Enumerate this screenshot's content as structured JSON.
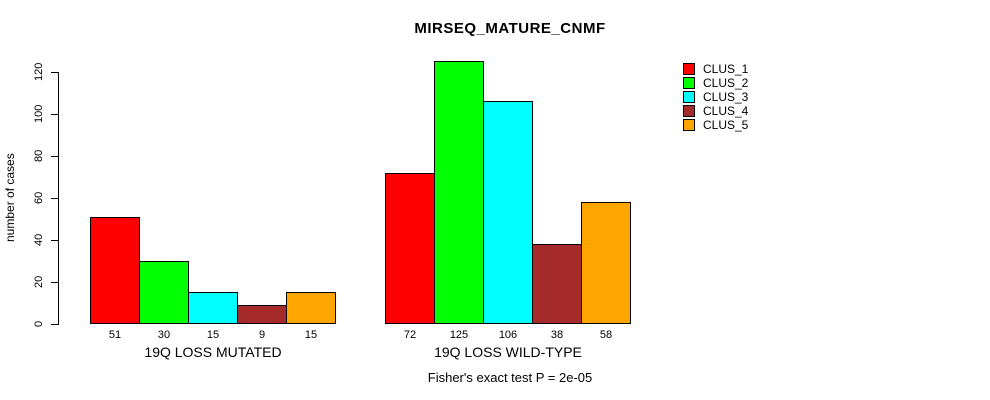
{
  "chart_data": {
    "type": "bar",
    "title": "MIRSEQ_MATURE_CNMF",
    "ylabel": "number of cases",
    "xlabel": "",
    "footnote": "Fisher's exact test P = 2e-05",
    "ylim": [
      0,
      125
    ],
    "yticks": [
      0,
      20,
      40,
      60,
      80,
      100,
      120
    ],
    "grid": false,
    "legend_position": "top-right",
    "categories": [
      "19Q LOSS MUTATED",
      "19Q LOSS WILD-TYPE"
    ],
    "series": [
      {
        "name": "CLUS_1",
        "color": "#ff0000",
        "values": [
          51,
          72
        ]
      },
      {
        "name": "CLUS_2",
        "color": "#00ff00",
        "values": [
          30,
          125
        ]
      },
      {
        "name": "CLUS_3",
        "color": "#00ffff",
        "values": [
          15,
          106
        ]
      },
      {
        "name": "CLUS_4",
        "color": "#a52a2a",
        "values": [
          9,
          38
        ]
      },
      {
        "name": "CLUS_5",
        "color": "#ffa500",
        "values": [
          15,
          58
        ]
      }
    ],
    "bar_value_labels_shown": true
  }
}
